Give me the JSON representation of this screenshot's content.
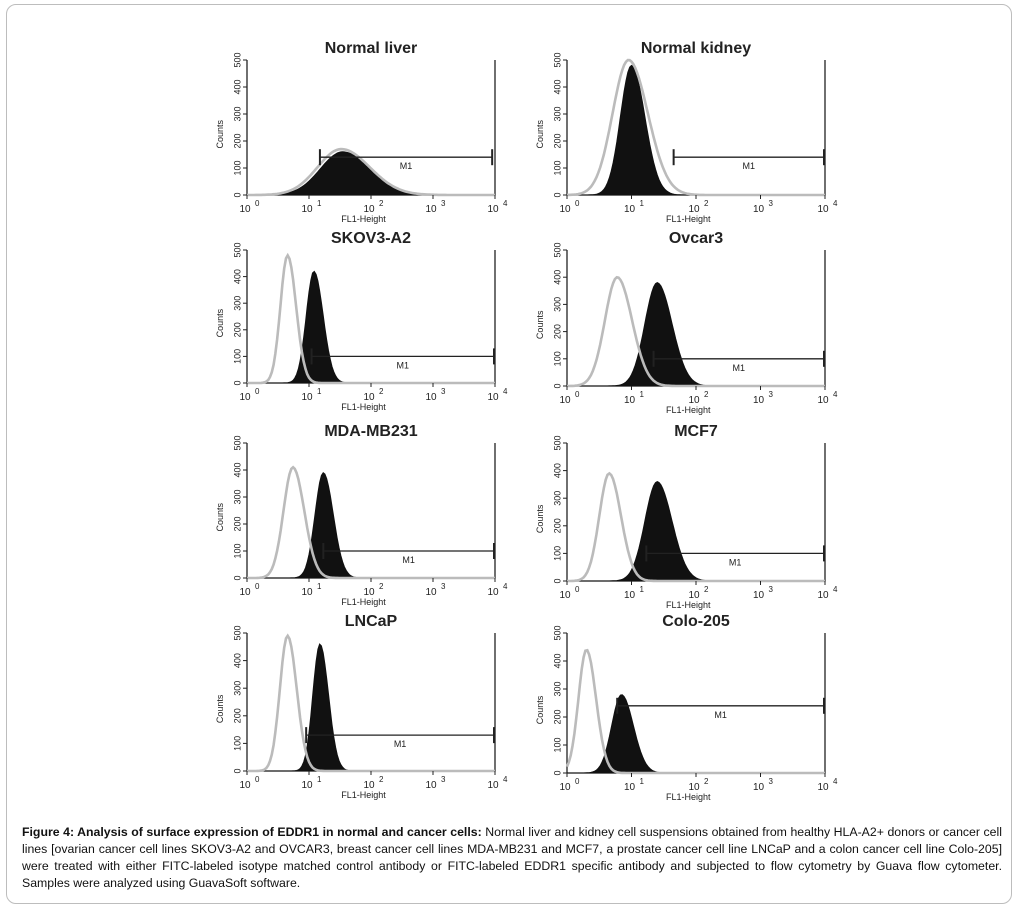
{
  "colors": {
    "treated_fill": "#111111",
    "isotype_line": "#bbbbbb",
    "axis": "#222222"
  },
  "chart_data": [
    {
      "type": "area",
      "title": "Normal liver",
      "xlabel": "FL1-Height",
      "ylabel": "Counts",
      "xscale": "log",
      "xlim": [
        1,
        10000
      ],
      "ylim": [
        0,
        500
      ],
      "x_ticks": [
        {
          "base": "10",
          "exp": "0"
        },
        {
          "base": "10",
          "exp": "1"
        },
        {
          "base": "10",
          "exp": "2"
        },
        {
          "base": "10",
          "exp": "3"
        },
        {
          "base": "10",
          "exp": "4"
        }
      ],
      "y_ticks": [
        "0",
        "100",
        "200",
        "300",
        "400",
        "500"
      ],
      "gate": {
        "label": "M1",
        "x_start": 15,
        "x_end": 9000,
        "y": 140
      },
      "series": [
        {
          "name": "EDDR1 antibody",
          "style": "filled",
          "peak_x": 35,
          "peak_y": 160,
          "width": 0.38
        },
        {
          "name": "Isotype control",
          "style": "line",
          "peak_x": 33,
          "peak_y": 170,
          "width": 0.4
        }
      ]
    },
    {
      "type": "area",
      "title": "Normal kidney",
      "xlabel": "FL1-Height",
      "ylabel": "Counts",
      "xscale": "log",
      "xlim": [
        1,
        10000
      ],
      "ylim": [
        0,
        500
      ],
      "x_ticks": [
        {
          "base": "10",
          "exp": "0"
        },
        {
          "base": "10",
          "exp": "1"
        },
        {
          "base": "10",
          "exp": "2"
        },
        {
          "base": "10",
          "exp": "3"
        },
        {
          "base": "10",
          "exp": "4"
        }
      ],
      "y_ticks": [
        "0",
        "100",
        "200",
        "300",
        "400",
        "500"
      ],
      "gate": {
        "label": "M1",
        "x_start": 45,
        "x_end": 9800,
        "y": 140
      },
      "series": [
        {
          "name": "EDDR1 antibody",
          "style": "filled",
          "peak_x": 10,
          "peak_y": 480,
          "width": 0.18
        },
        {
          "name": "Isotype control",
          "style": "line",
          "peak_x": 9,
          "peak_y": 500,
          "width": 0.26
        }
      ]
    },
    {
      "type": "area",
      "title": "SKOV3-A2",
      "xlabel": "FL1-Height",
      "ylabel": "Counts",
      "xscale": "log",
      "xlim": [
        1,
        10000
      ],
      "ylim": [
        0,
        500
      ],
      "x_ticks": [
        {
          "base": "10",
          "exp": "0"
        },
        {
          "base": "10",
          "exp": "1"
        },
        {
          "base": "10",
          "exp": "2"
        },
        {
          "base": "10",
          "exp": "3"
        },
        {
          "base": "10",
          "exp": "4"
        }
      ],
      "y_ticks": [
        "0",
        "100",
        "200",
        "300",
        "400",
        "500"
      ],
      "gate": {
        "label": "M1",
        "x_start": 11,
        "x_end": 10000,
        "y": 100
      },
      "series": [
        {
          "name": "EDDR1 antibody",
          "style": "filled",
          "peak_x": 12,
          "peak_y": 420,
          "width": 0.13
        },
        {
          "name": "Isotype control",
          "style": "line",
          "peak_x": 4.5,
          "peak_y": 480,
          "width": 0.12
        }
      ]
    },
    {
      "type": "area",
      "title": "Ovcar3",
      "xlabel": "FL1-Height",
      "ylabel": "Counts",
      "xscale": "log",
      "xlim": [
        1,
        10000
      ],
      "ylim": [
        0,
        500
      ],
      "x_ticks": [
        {
          "base": "10",
          "exp": "0"
        },
        {
          "base": "10",
          "exp": "1"
        },
        {
          "base": "10",
          "exp": "2"
        },
        {
          "base": "10",
          "exp": "3"
        },
        {
          "base": "10",
          "exp": "4"
        }
      ],
      "y_ticks": [
        "0",
        "100",
        "200",
        "300",
        "400",
        "500"
      ],
      "gate": {
        "label": "M1",
        "x_start": 22,
        "x_end": 10000,
        "y": 100
      },
      "series": [
        {
          "name": "EDDR1 antibody",
          "style": "filled",
          "peak_x": 25,
          "peak_y": 380,
          "width": 0.2
        },
        {
          "name": "Isotype control",
          "style": "line",
          "peak_x": 6,
          "peak_y": 400,
          "width": 0.2
        }
      ]
    },
    {
      "type": "area",
      "title": "MDA-MB231",
      "xlabel": "FL1-Height",
      "ylabel": "Counts",
      "xscale": "log",
      "xlim": [
        1,
        10000
      ],
      "ylim": [
        0,
        500
      ],
      "x_ticks": [
        {
          "base": "10",
          "exp": "0"
        },
        {
          "base": "10",
          "exp": "1"
        },
        {
          "base": "10",
          "exp": "2"
        },
        {
          "base": "10",
          "exp": "3"
        },
        {
          "base": "10",
          "exp": "4"
        }
      ],
      "y_ticks": [
        "0",
        "100",
        "200",
        "300",
        "400",
        "500"
      ],
      "gate": {
        "label": "M1",
        "x_start": 17,
        "x_end": 10000,
        "y": 100
      },
      "series": [
        {
          "name": "EDDR1 antibody",
          "style": "filled",
          "peak_x": 17,
          "peak_y": 390,
          "width": 0.14
        },
        {
          "name": "Isotype control",
          "style": "line",
          "peak_x": 5.5,
          "peak_y": 410,
          "width": 0.16
        }
      ]
    },
    {
      "type": "area",
      "title": "MCF7",
      "xlabel": "FL1-Height",
      "ylabel": "Counts",
      "xscale": "log",
      "xlim": [
        1,
        10000
      ],
      "ylim": [
        0,
        500
      ],
      "x_ticks": [
        {
          "base": "10",
          "exp": "0"
        },
        {
          "base": "10",
          "exp": "1"
        },
        {
          "base": "10",
          "exp": "2"
        },
        {
          "base": "10",
          "exp": "3"
        },
        {
          "base": "10",
          "exp": "4"
        }
      ],
      "y_ticks": [
        "0",
        "100",
        "200",
        "300",
        "400",
        "500"
      ],
      "gate": {
        "label": "M1",
        "x_start": 17,
        "x_end": 10000,
        "y": 100
      },
      "series": [
        {
          "name": "EDDR1 antibody",
          "style": "filled",
          "peak_x": 25,
          "peak_y": 360,
          "width": 0.2
        },
        {
          "name": "Isotype control",
          "style": "line",
          "peak_x": 4.5,
          "peak_y": 390,
          "width": 0.16
        }
      ]
    },
    {
      "type": "area",
      "title": "LNCaP",
      "xlabel": "FL1-Height",
      "ylabel": "Counts",
      "xscale": "log",
      "xlim": [
        1,
        10000
      ],
      "ylim": [
        0,
        500
      ],
      "x_ticks": [
        {
          "base": "10",
          "exp": "0"
        },
        {
          "base": "10",
          "exp": "1"
        },
        {
          "base": "10",
          "exp": "2"
        },
        {
          "base": "10",
          "exp": "3"
        },
        {
          "base": "10",
          "exp": "4"
        }
      ],
      "y_ticks": [
        "0",
        "100",
        "200",
        "300",
        "400",
        "500"
      ],
      "gate": {
        "label": "M1",
        "x_start": 9,
        "x_end": 10000,
        "y": 130
      },
      "series": [
        {
          "name": "EDDR1 antibody",
          "style": "filled",
          "peak_x": 15,
          "peak_y": 460,
          "width": 0.12
        },
        {
          "name": "Isotype control",
          "style": "line",
          "peak_x": 4.5,
          "peak_y": 490,
          "width": 0.13
        }
      ]
    },
    {
      "type": "area",
      "title": "Colo-205",
      "xlabel": "FL1-Height",
      "ylabel": "Counts",
      "xscale": "log",
      "xlim": [
        1,
        10000
      ],
      "ylim": [
        0,
        500
      ],
      "x_ticks": [
        {
          "base": "10",
          "exp": "0"
        },
        {
          "base": "10",
          "exp": "1"
        },
        {
          "base": "10",
          "exp": "2"
        },
        {
          "base": "10",
          "exp": "3"
        },
        {
          "base": "10",
          "exp": "4"
        }
      ],
      "y_ticks": [
        "0",
        "100",
        "200",
        "300",
        "400",
        "500"
      ],
      "gate": {
        "label": "M1",
        "x_start": 6,
        "x_end": 10000,
        "y": 240
      },
      "series": [
        {
          "name": "EDDR1 antibody",
          "style": "filled",
          "peak_x": 7,
          "peak_y": 280,
          "width": 0.16
        },
        {
          "name": "Isotype control",
          "style": "line",
          "peak_x": 2,
          "peak_y": 440,
          "width": 0.13
        }
      ]
    }
  ],
  "caption": {
    "bold": "Figure 4: Analysis of surface expression of EDDR1 in normal and cancer cells:",
    "text": " Normal liver and kidney cell suspensions obtained from healthy HLA-A2+ donors or cancer cell lines [ovarian cancer cell lines SKOV3-A2 and OVCAR3, breast cancer cell lines MDA-MB231 and MCF7, a prostate cancer cell line LNCaP and a colon cancer cell line Colo-205] were treated with either FITC-labeled isotype matched control antibody or FITC-labeled EDDR1 specific antibody and subjected to flow cytometry by Guava flow cytometer. Samples were analyzed using GuavaSoft software."
  }
}
